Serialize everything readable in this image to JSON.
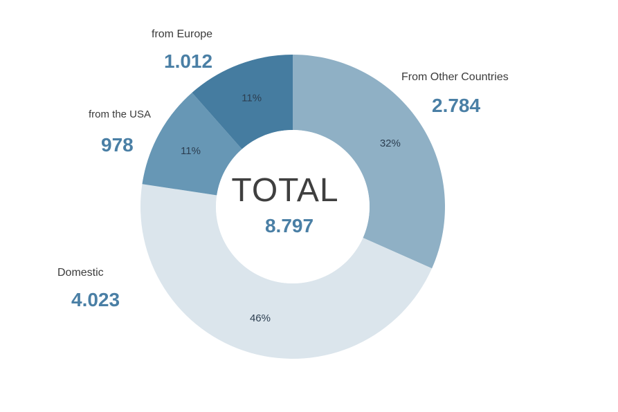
{
  "chart_data": {
    "type": "pie",
    "variant": "donut",
    "categories": [
      "From Other Countries",
      "Domestic",
      "from the USA",
      "from Europe"
    ],
    "values": [
      2784,
      4023,
      978,
      1012
    ],
    "value_labels": [
      "2.784",
      "4.023",
      "978",
      "1.012"
    ],
    "percent_labels": [
      "32%",
      "46%",
      "11%",
      "11%"
    ],
    "colors": [
      "#8fb0c5",
      "#dbe5ec",
      "#6797b5",
      "#457ca0"
    ],
    "center_title": "TOTAL",
    "center_value": "8.797",
    "start_angle_deg": 0,
    "direction": "clockwise"
  }
}
